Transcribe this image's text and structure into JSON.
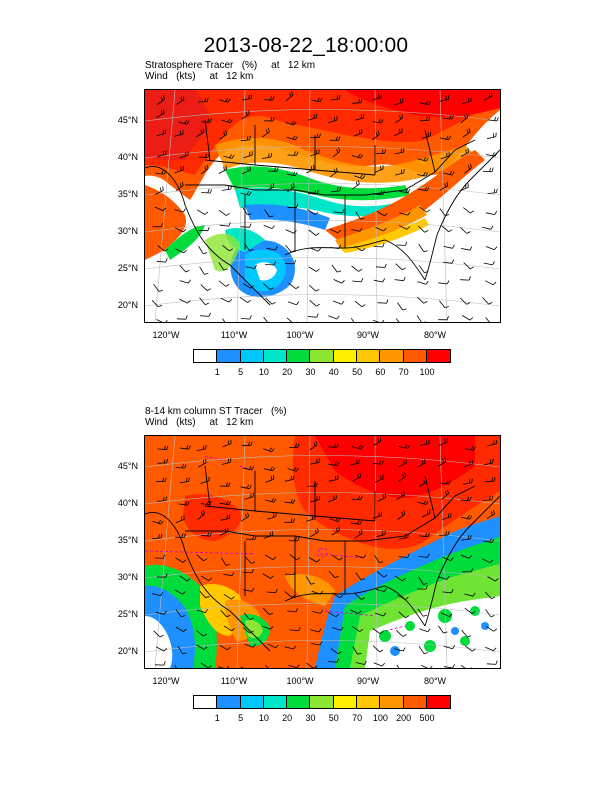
{
  "title": "2013-08-22_18:00:00",
  "panel1": {
    "line1": "Stratosphere Tracer   (%)     at   12 km",
    "line2": "Wind   (kts)     at   12 km",
    "lat_labels": [
      "45°N",
      "40°N",
      "35°N",
      "30°N",
      "25°N",
      "20°N"
    ],
    "lon_labels": [
      "120°W",
      "110°W",
      "100°W",
      "90°W",
      "80°W"
    ],
    "colorbar_labels": [
      "1",
      "5",
      "10",
      "20",
      "30",
      "40",
      "50",
      "60",
      "70",
      "100"
    ]
  },
  "panel2": {
    "line1": "8-14 km column ST Tracer   (%)",
    "line2": "Wind   (kts)     at   12 km",
    "lat_labels": [
      "45°N",
      "40°N",
      "35°N",
      "30°N",
      "25°N",
      "20°N"
    ],
    "lon_labels": [
      "120°W",
      "110°W",
      "100°W",
      "90°W",
      "80°W"
    ],
    "colorbar_labels": [
      "1",
      "5",
      "10",
      "20",
      "30",
      "50",
      "70",
      "100",
      "200",
      "500"
    ]
  },
  "colorbar_colors": [
    "#ffffff",
    "#1e90ff",
    "#00c8ff",
    "#00e6c8",
    "#00dc3c",
    "#8ce632",
    "#fff000",
    "#ffc800",
    "#ff9600",
    "#ff5a00",
    "#ff0000"
  ]
}
